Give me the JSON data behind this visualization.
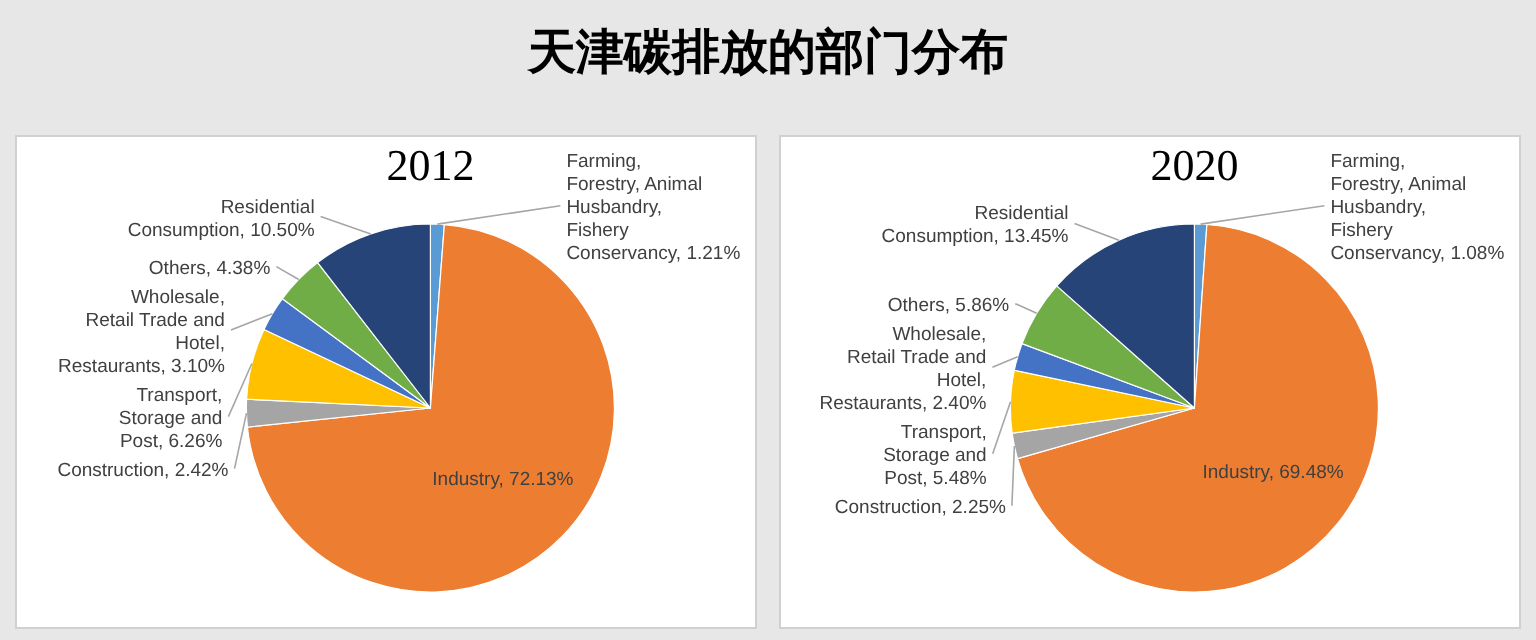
{
  "chart_data": [
    {
      "type": "pie",
      "title": "天津碳排放的部门分布",
      "subtitle": "2012",
      "categories": [
        "Farming, Forestry, Animal Husbandry, Fishery Conservancy",
        "Industry",
        "Construction",
        "Transport, Storage and Post",
        "Wholesale, Retail Trade and Hotel, Restaurants",
        "Others",
        "Residential Consumption"
      ],
      "values": [
        1.21,
        72.13,
        2.42,
        6.26,
        3.1,
        4.38,
        10.5
      ],
      "value_labels": [
        "1.21%",
        "72.13%",
        "2.42%",
        "6.26%",
        "3.10%",
        "4.38%",
        "10.50%"
      ],
      "colors": [
        "#5b9bd5",
        "#ed7d31",
        "#a5a5a5",
        "#ffc000",
        "#4472c4",
        "#70ad47",
        "#264478"
      ]
    },
    {
      "type": "pie",
      "subtitle": "2020",
      "categories": [
        "Farming, Forestry, Animal Husbandry, Fishery Conservancy",
        "Industry",
        "Construction",
        "Transport, Storage and Post",
        "Wholesale, Retail Trade and Hotel, Restaurants",
        "Others",
        "Residential Consumption"
      ],
      "values": [
        1.08,
        69.48,
        2.25,
        5.48,
        2.4,
        5.86,
        13.45
      ],
      "value_labels": [
        "1.08%",
        "69.48%",
        "2.25%",
        "5.48%",
        "2.40%",
        "5.86%",
        "13.45%"
      ],
      "colors": [
        "#5b9bd5",
        "#ed7d31",
        "#a5a5a5",
        "#ffc000",
        "#4472c4",
        "#70ad47",
        "#264478"
      ]
    }
  ]
}
